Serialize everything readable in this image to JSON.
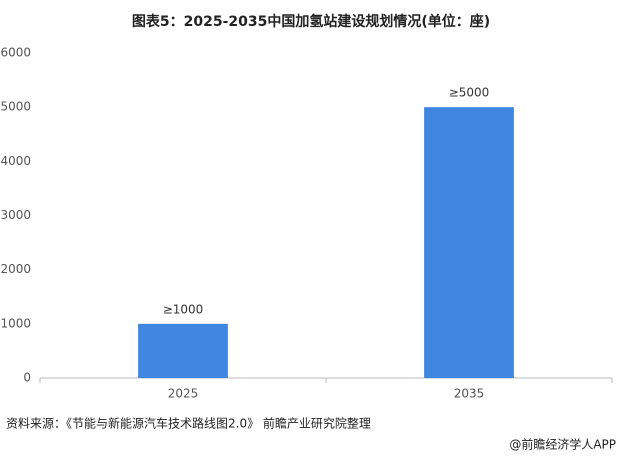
{
  "chart_data": {
    "type": "bar",
    "title": "图表5：2025-2035中国加氢站建设规划情况(单位：座)",
    "categories": [
      "2025",
      "2035"
    ],
    "values": [
      1000,
      5000
    ],
    "value_labels": [
      "≥1000",
      "≥5000"
    ],
    "color": "#3f86e0",
    "ylim": [
      0,
      6000
    ],
    "yticks": [
      0,
      1000,
      2000,
      3000,
      4000,
      5000,
      6000
    ],
    "grid": false,
    "source": "资料来源：《节能与新能源汽车技术路线图2.0》 前瞻产业研究院整理",
    "footer": "@前瞻经济学人APP"
  }
}
